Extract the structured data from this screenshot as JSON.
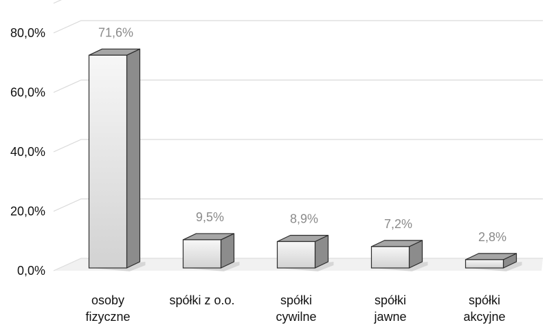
{
  "chart_data": {
    "type": "bar",
    "style": "3d-column",
    "categories": [
      [
        "osoby",
        "fizyczne"
      ],
      [
        "spółki z o.o."
      ],
      [
        "spółki",
        "cywilne"
      ],
      [
        "spółki",
        "jawne"
      ],
      [
        "spółki",
        "akcyjne"
      ]
    ],
    "values": [
      71.6,
      9.5,
      8.9,
      7.2,
      2.8
    ],
    "data_labels": [
      "71,6%",
      "9,5%",
      "8,9%",
      "7,2%",
      "2,8%"
    ],
    "y_ticks": [
      0,
      20,
      40,
      60,
      80
    ],
    "y_tick_labels": [
      "0,0%",
      "20,0%",
      "40,0%",
      "60,0%",
      "80,0%"
    ],
    "ylim": [
      0,
      90
    ],
    "grid": true,
    "legend": "none",
    "colors": {
      "front_top": "#f7f7f7",
      "front_bottom": "#d2d2d2",
      "side": "#8c8c8c",
      "top": "#a6a6a6",
      "edge": "#2b2b2b",
      "grid": "#d9d9d9",
      "floor": "#e6e6e6",
      "data_label": "#8a8a8a",
      "axis_text": "#111111"
    }
  }
}
